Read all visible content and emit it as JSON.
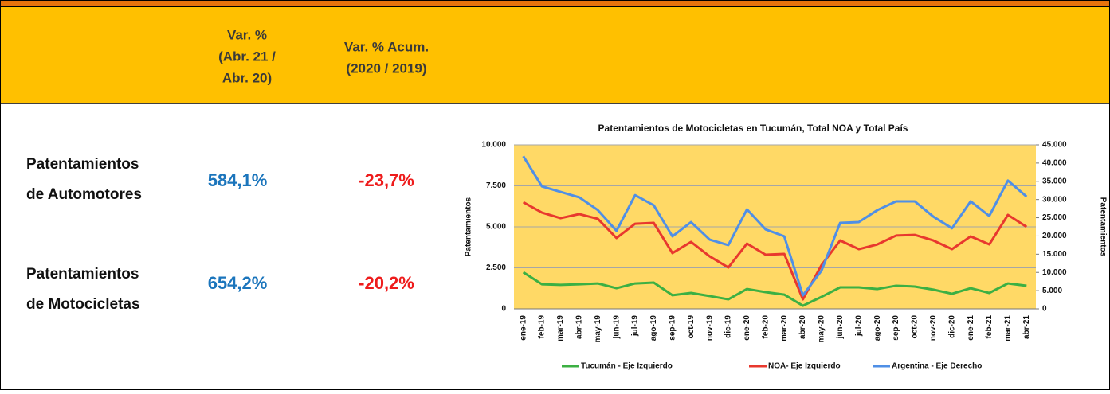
{
  "table": {
    "headers": [
      [
        "Var. %",
        "(Abr. 21 /",
        "Abr. 20)"
      ],
      [
        "Var. % Acum.",
        "(2020 / 2019)"
      ]
    ],
    "rows": [
      {
        "label": [
          "Patentamientos",
          "de Automotores"
        ],
        "values": [
          "584,1%",
          "-23,7%"
        ]
      },
      {
        "label": [
          "Patentamientos",
          "de Motocicletas"
        ],
        "values": [
          "654,2%",
          "-20,2%"
        ]
      }
    ]
  },
  "chart_data": {
    "type": "line",
    "title": "Patentamientos de Motocicletas en Tucumán, Total NOA y Total País",
    "y_label": "Patentamientos",
    "y2_label": "Patentamientos",
    "categories": [
      "ene-19",
      "feb-19",
      "mar-19",
      "abr-19",
      "may-19",
      "jun-19",
      "jul-19",
      "ago-19",
      "sep-19",
      "oct-19",
      "nov-19",
      "dic-19",
      "ene-20",
      "feb-20",
      "mar-20",
      "abr-20",
      "may-20",
      "jun-20",
      "jul-20",
      "ago-20",
      "sep-20",
      "oct-20",
      "nov-20",
      "dic-20",
      "ene-21",
      "feb-21",
      "mar-21",
      "abr-21"
    ],
    "series": [
      {
        "name": "Tucumán - Eje Izquierdo",
        "color": "#3cb043",
        "axis": "y",
        "values": [
          2230,
          1500,
          1460,
          1500,
          1550,
          1260,
          1550,
          1600,
          830,
          970,
          780,
          580,
          1210,
          1020,
          870,
          190,
          730,
          1310,
          1310,
          1210,
          1410,
          1360,
          1170,
          920,
          1260,
          970,
          1550,
          1410
        ]
      },
      {
        "name": "NOA- Eje Izquierdo",
        "color": "#e8382e",
        "axis": "y",
        "values": [
          6500,
          5870,
          5530,
          5780,
          5490,
          4320,
          5190,
          5240,
          3400,
          4080,
          3200,
          2520,
          3980,
          3300,
          3350,
          580,
          2670,
          4170,
          3640,
          3930,
          4470,
          4510,
          4170,
          3640,
          4420,
          3930,
          5730,
          5000
        ]
      },
      {
        "name": "Argentina - Eje Derecho",
        "color": "#4f8fe6",
        "axis": "y2",
        "values": [
          41900,
          33600,
          32100,
          30600,
          27100,
          21400,
          31200,
          28400,
          19900,
          23800,
          19000,
          17500,
          27300,
          21800,
          19900,
          3700,
          10500,
          23600,
          23800,
          27100,
          29500,
          29500,
          25300,
          22100,
          29500,
          25500,
          35200,
          30800
        ]
      }
    ],
    "ylim": [
      0,
      10000
    ],
    "yticks": [
      0,
      {
        "value": 2500,
        "label": "2.500"
      },
      {
        "value": 5000,
        "label": "5.000"
      },
      {
        "value": 7500,
        "label": "7.500"
      },
      {
        "value": 10000,
        "label": "10.000"
      }
    ],
    "y2lim": [
      0,
      45000
    ],
    "y2ticks": [
      0,
      {
        "value": 5000,
        "label": "5.000"
      },
      {
        "value": 10000,
        "label": "10.000"
      },
      {
        "value": 15000,
        "label": "15.000"
      },
      {
        "value": 20000,
        "label": "20.000"
      },
      {
        "value": 25000,
        "label": "25.000"
      },
      {
        "value": 30000,
        "label": "30.000"
      },
      {
        "value": 35000,
        "label": "35.000"
      },
      {
        "value": 40000,
        "label": "40.000"
      },
      {
        "value": 45000,
        "label": "45.000"
      }
    ],
    "grid": true
  }
}
